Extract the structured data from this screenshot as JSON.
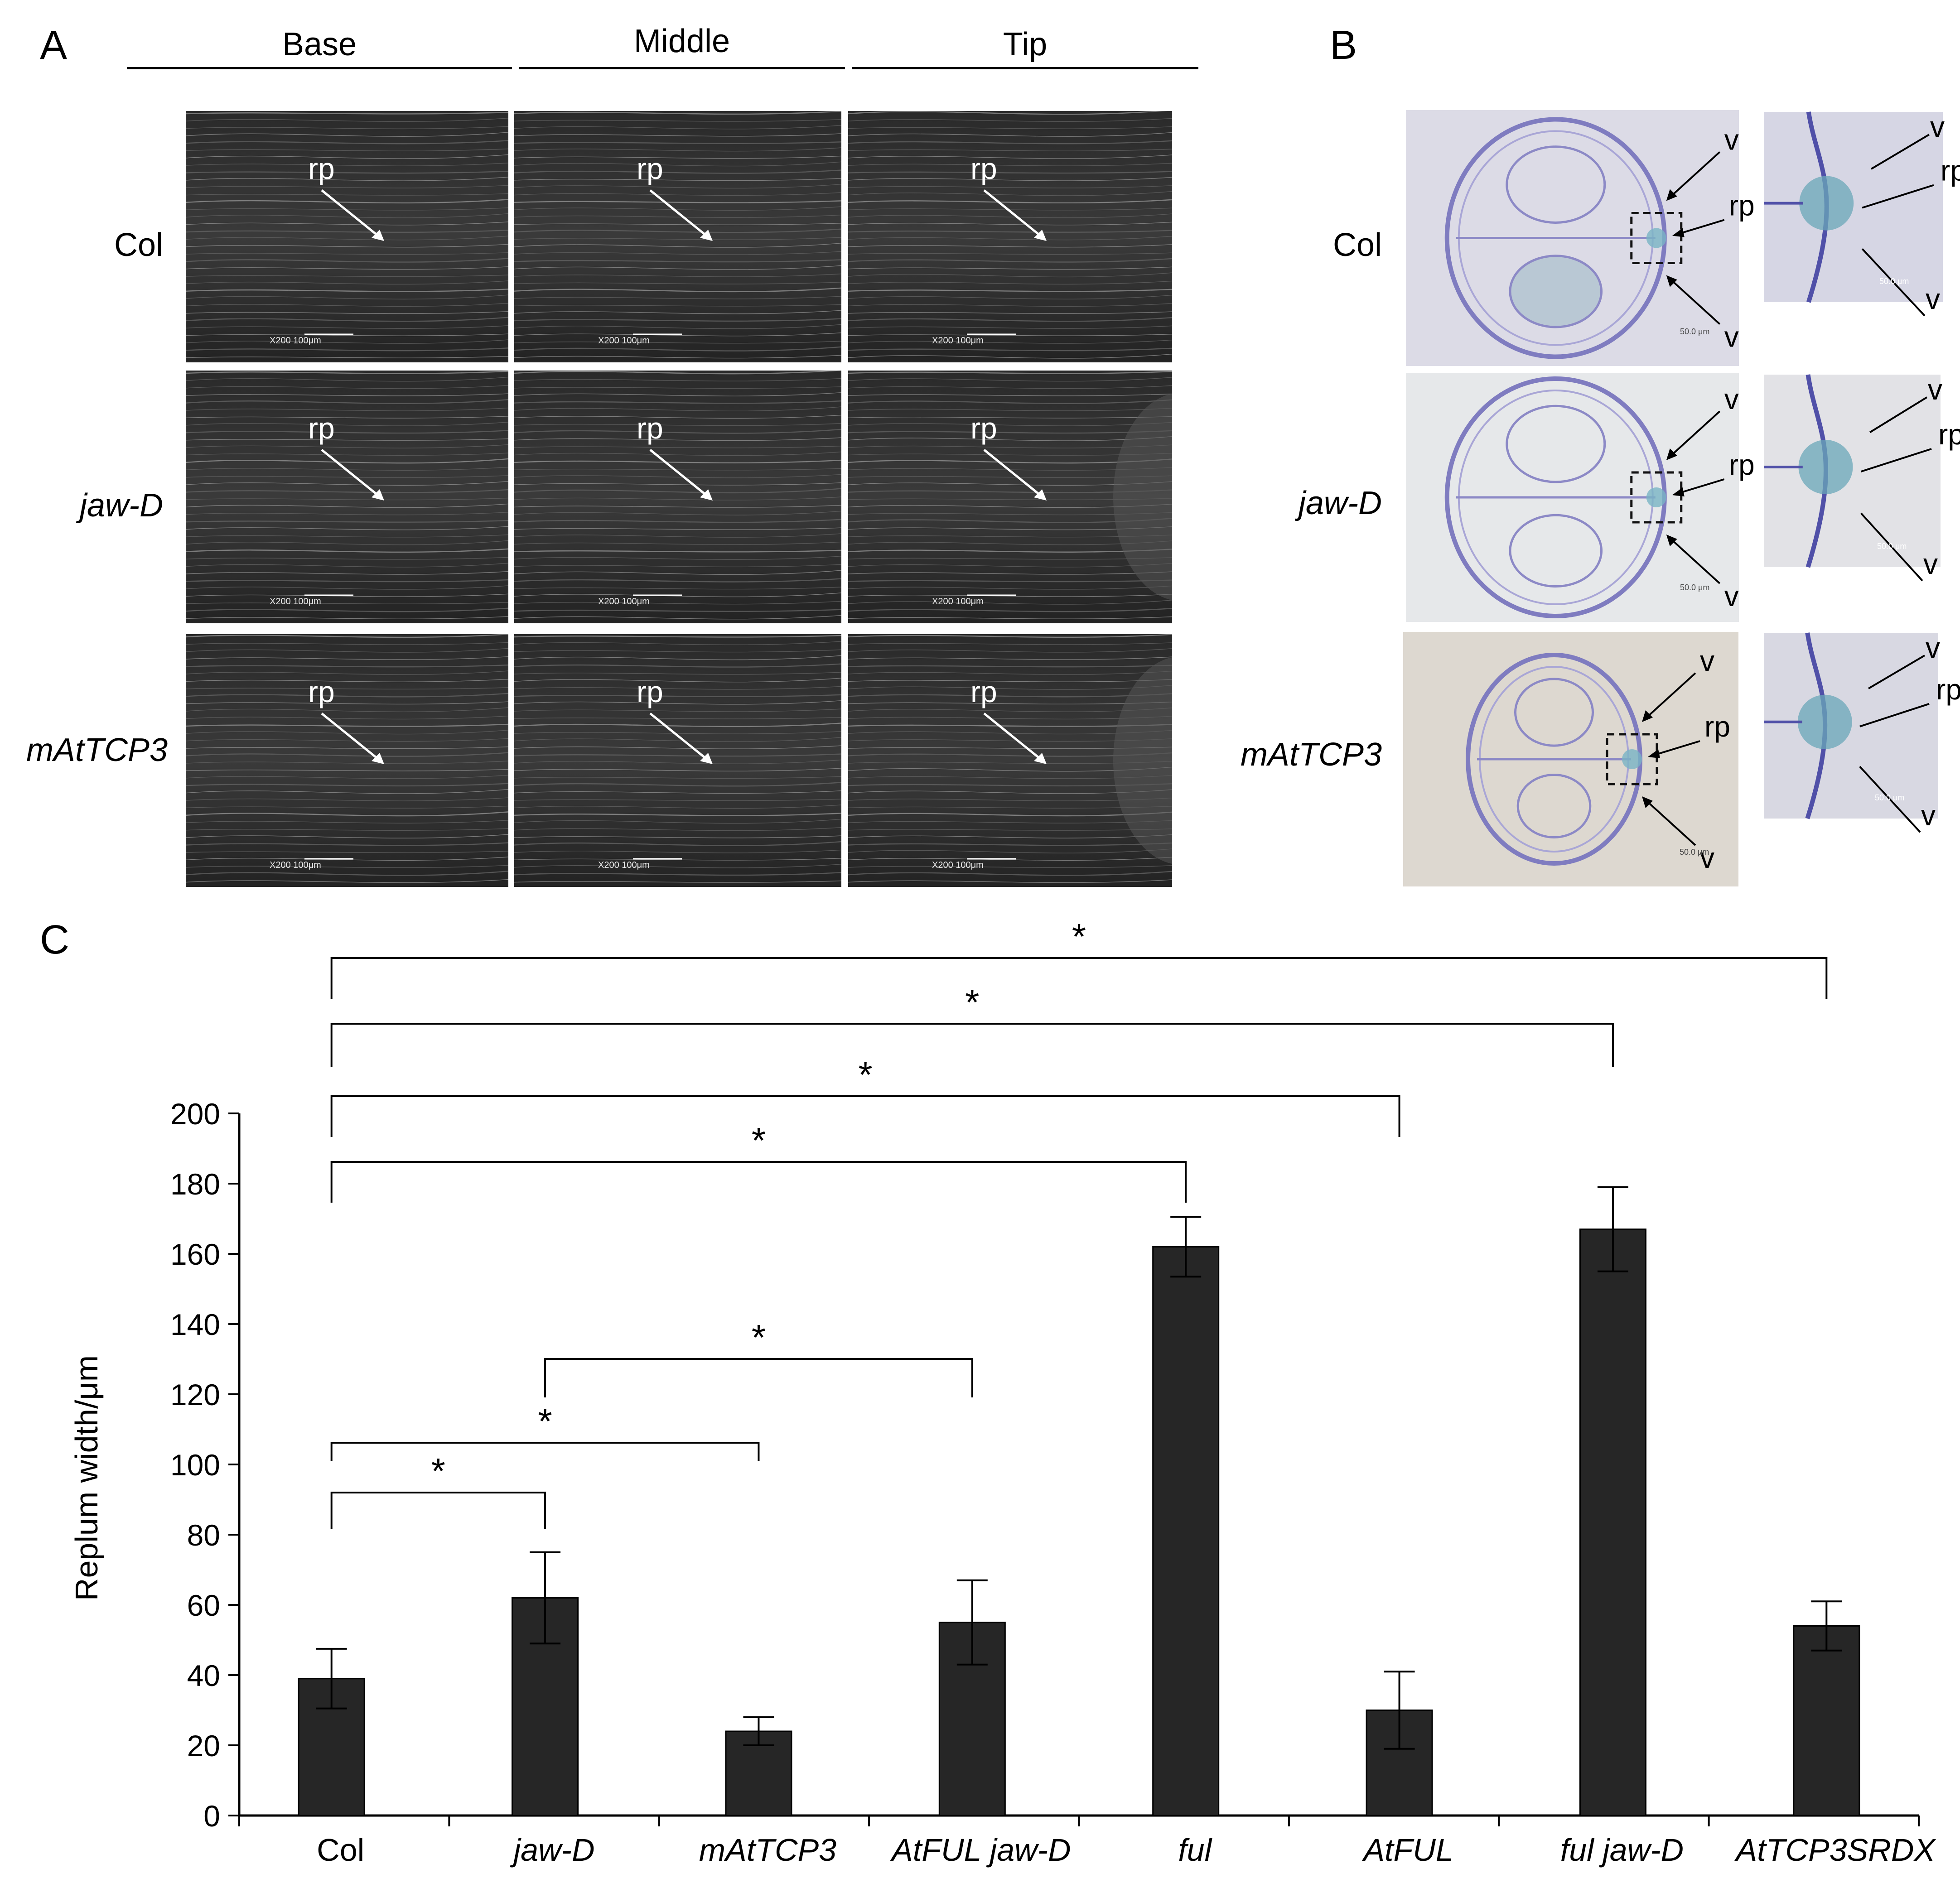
{
  "panelA": {
    "letter": "A",
    "columns": [
      "Base",
      "Middle",
      "Tip"
    ],
    "rows": [
      "Col",
      "jaw-D",
      "mAtTCP3"
    ],
    "annotation": "rp",
    "scale_label": "X200  100μm"
  },
  "panelB": {
    "letter": "B",
    "rows": [
      "Col",
      "jaw-D",
      "mAtTCP3"
    ],
    "labels": {
      "vascular": "v",
      "replum": "rp"
    },
    "scale_label": "50.0 μm"
  },
  "panelC": {
    "letter": "C",
    "significance_mark": "*",
    "chart_data": {
      "type": "bar",
      "categories": [
        "Col",
        "jaw-D",
        "mAtTCP3",
        "AtFUL jaw-D",
        "ful",
        "AtFUL",
        "ful jaw-D",
        "AtTCP3SRDX"
      ],
      "italic": [
        false,
        true,
        true,
        true,
        true,
        true,
        true,
        true
      ],
      "values": [
        39,
        62,
        24,
        55,
        162,
        30,
        167,
        54
      ],
      "errors": [
        8.5,
        13,
        4,
        12,
        8.5,
        11,
        12,
        7
      ],
      "ylabel": "Replum width/μm",
      "ylim": [
        0,
        200
      ],
      "yticks": [
        0,
        20,
        40,
        60,
        80,
        100,
        120,
        140,
        160,
        180,
        200
      ],
      "bar_color": "#262626",
      "comparisons": [
        {
          "from": 0,
          "to": 7,
          "label": "*"
        },
        {
          "from": 0,
          "to": 6,
          "label": "*"
        },
        {
          "from": 0,
          "to": 5,
          "label": "*"
        },
        {
          "from": 0,
          "to": 4,
          "label": "*"
        },
        {
          "from": 1,
          "to": 3,
          "label": "*"
        },
        {
          "from": 0,
          "to": 2,
          "label": "*"
        },
        {
          "from": 0,
          "to": 1,
          "label": "*"
        }
      ]
    }
  }
}
